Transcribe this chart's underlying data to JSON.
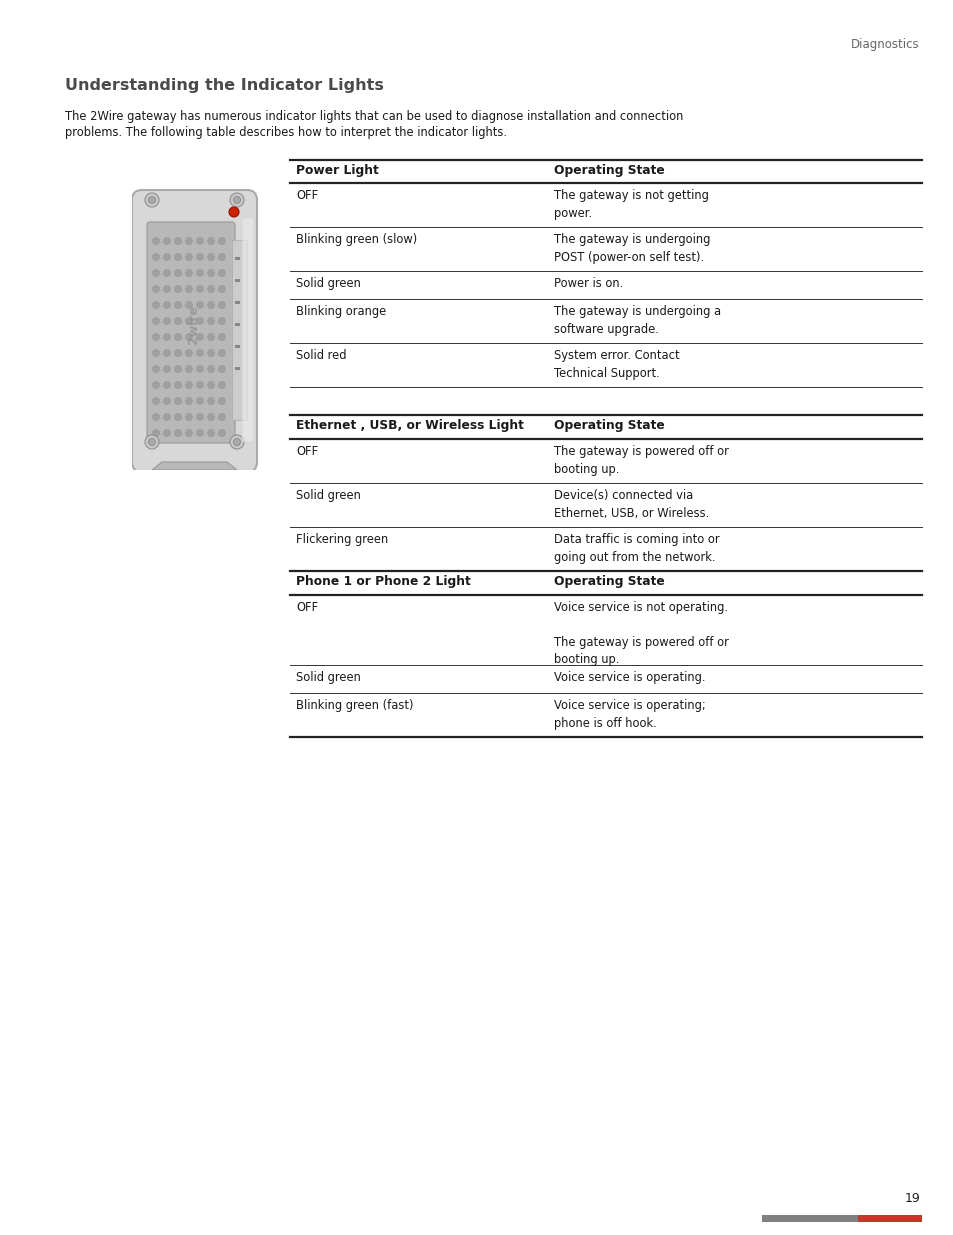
{
  "page_bg": "#ffffff",
  "header_text": "Diagnostics",
  "title": "Understanding the Indicator Lights",
  "intro_line1": "The 2Wire gateway has numerous indicator lights that can be used to diagnose installation and connection",
  "intro_line2": "problems. The following table describes how to interpret the indicator lights.",
  "table1_header": [
    "Power Light",
    "Operating State"
  ],
  "table1_rows": [
    [
      "OFF",
      "The gateway is not getting\npower."
    ],
    [
      "Blinking green (slow)",
      "The gateway is undergoing\nPOST (power-on self test)."
    ],
    [
      "Solid green",
      "Power is on."
    ],
    [
      "Blinking orange",
      "The gateway is undergoing a\nsoftware upgrade."
    ],
    [
      "Solid red",
      "System error. Contact\nTechnical Support."
    ]
  ],
  "table2_header": [
    "Ethernet , USB, or Wireless Light",
    "Operating State"
  ],
  "table2_rows": [
    [
      "OFF",
      "The gateway is powered off or\nbooting up."
    ],
    [
      "Solid green",
      "Device(s) connected via\nEthernet, USB, or Wireless."
    ],
    [
      "Flickering green",
      "Data traffic is coming into or\ngoing out from the network."
    ]
  ],
  "table3_header": [
    "Phone 1 or Phone 2 Light",
    "Operating State"
  ],
  "table3_rows": [
    [
      "OFF",
      "Voice service is not operating.\n\nThe gateway is powered off or\nbooting up."
    ],
    [
      "Solid green",
      "Voice service is operating."
    ],
    [
      "Blinking green (fast)",
      "Voice service is operating;\nphone is off hook."
    ]
  ],
  "page_number": "19",
  "footer_bar_gray": "#808080",
  "footer_bar_red": "#c0392b",
  "title_color": "#4a4a4a",
  "header_color": "#666666",
  "text_color": "#1a1a1a",
  "line_color": "#333333"
}
